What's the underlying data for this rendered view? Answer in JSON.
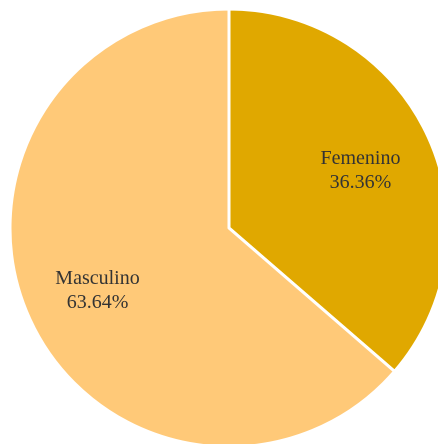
{
  "chart_data": {
    "type": "pie",
    "slices": [
      {
        "label": "Femenino",
        "value": 36.36,
        "value_text": "36.36%",
        "color": "#E0A800"
      },
      {
        "label": "Masculino",
        "value": 63.64,
        "value_text": "63.64%",
        "color": "#FFC978"
      }
    ],
    "start_angle_deg": 0,
    "direction": "clockwise",
    "separator_color": "#ffffff",
    "legend": "none"
  }
}
